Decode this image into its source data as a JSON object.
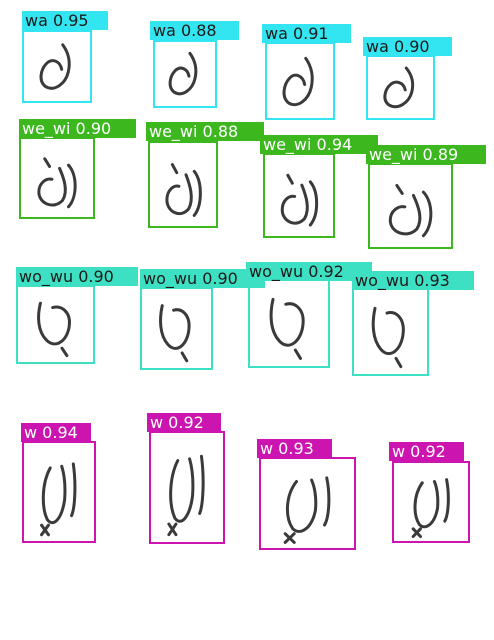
{
  "colors": {
    "wa": "#33e5f0",
    "we_wi": "#3cb81e",
    "wo_wu": "#3ee0c3",
    "w": "#cc14b0",
    "stroke": "#3a3a3a",
    "label_text_dark": "#1a1a1a",
    "label_text_light": "#ffffff"
  },
  "detections": [
    {
      "label": "wa 0.95",
      "cls": "wa"
    },
    {
      "label": "wa 0.88",
      "cls": "wa"
    },
    {
      "label": "wa 0.91",
      "cls": "wa"
    },
    {
      "label": "wa 0.90",
      "cls": "wa"
    },
    {
      "label": "we_wi 0.90",
      "cls": "we_wi"
    },
    {
      "label": "we_wi 0.88",
      "cls": "we_wi"
    },
    {
      "label": "we_wi 0.94",
      "cls": "we_wi"
    },
    {
      "label": "we_wi 0.89",
      "cls": "we_wi"
    },
    {
      "label": "wo_wu 0.90",
      "cls": "wo_wu"
    },
    {
      "label": "wo_wu 0.90",
      "cls": "wo_wu"
    },
    {
      "label": "wo_wu 0.92",
      "cls": "wo_wu"
    },
    {
      "label": "wo_wu 0.93",
      "cls": "wo_wu"
    },
    {
      "label": "w 0.94",
      "cls": "w"
    },
    {
      "label": "w 0.92",
      "cls": "w"
    },
    {
      "label": "w 0.93",
      "cls": "w"
    },
    {
      "label": "w 0.92",
      "cls": "w"
    }
  ]
}
